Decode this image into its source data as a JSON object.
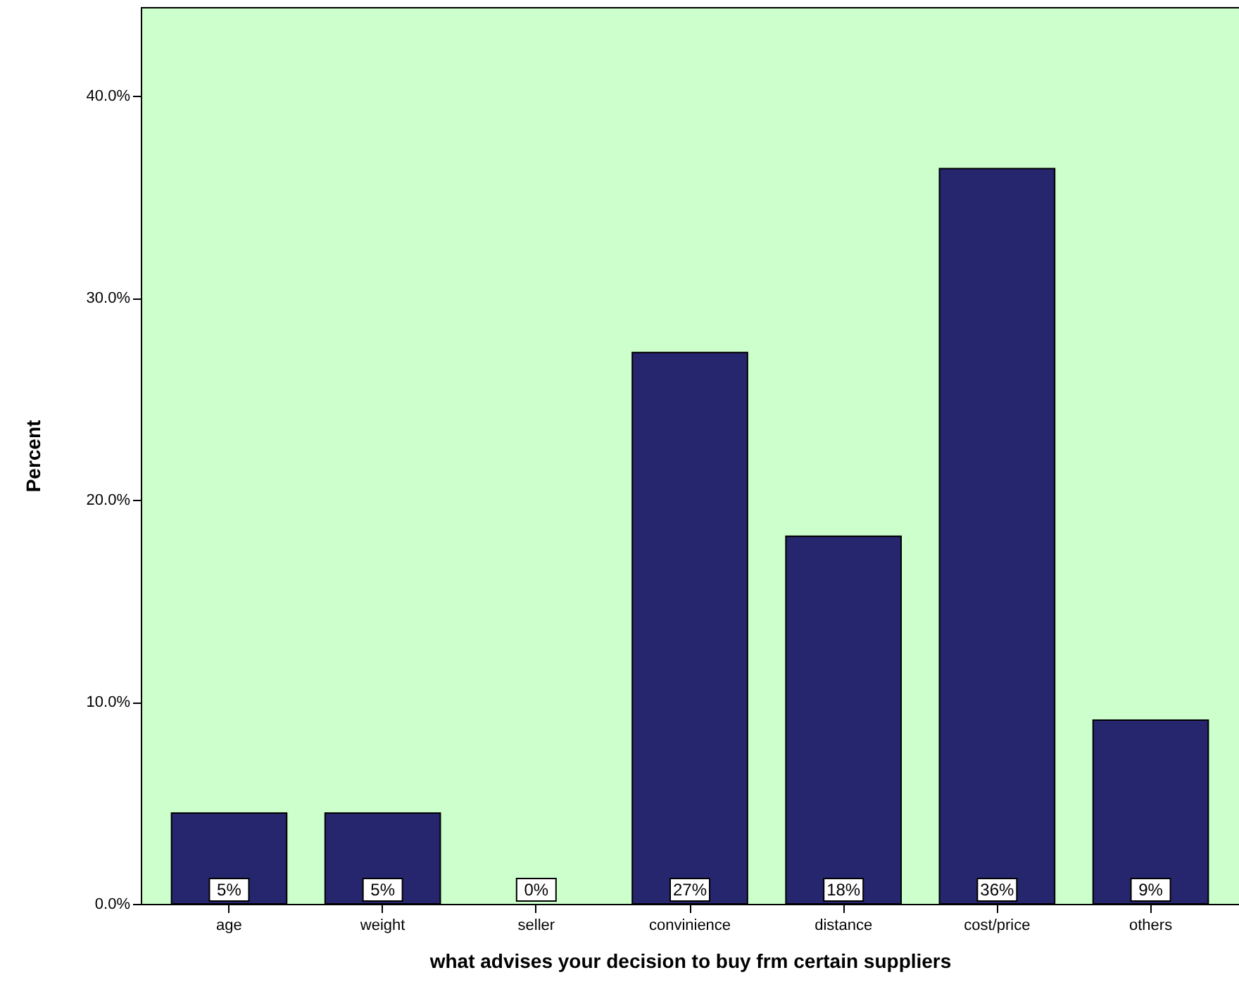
{
  "chart_data": {
    "type": "bar",
    "xlabel": "what advises your decision to buy frm certain suppliers",
    "ylabel": "Percent",
    "categories": [
      "age",
      "weight",
      "seller",
      "convinience",
      "distance",
      "cost/price",
      "others"
    ],
    "values": [
      4.5,
      4.5,
      0,
      27.3,
      18.2,
      36.4,
      9.1
    ],
    "value_labels": [
      "5%",
      "5%",
      "0%",
      "27%",
      "18%",
      "36%",
      "9%"
    ],
    "color": "#26266e",
    "ylim": [
      0,
      44.4
    ],
    "yticks": [
      {
        "value": 0,
        "label": "0.0%"
      },
      {
        "value": 10,
        "label": "10.0%"
      },
      {
        "value": 20,
        "label": "20.0%"
      },
      {
        "value": 30,
        "label": "30.0%"
      },
      {
        "value": 40,
        "label": "40.0%"
      }
    ],
    "grid": false
  }
}
